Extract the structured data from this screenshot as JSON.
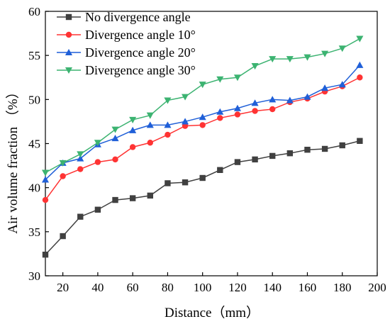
{
  "chart_data": {
    "type": "line",
    "title": "",
    "xlabel": "Distance（mm）",
    "ylabel": "Air volume fraction （%）",
    "xlim": [
      10,
      200
    ],
    "ylim": [
      30,
      60
    ],
    "xticks": [
      20,
      40,
      60,
      80,
      100,
      120,
      140,
      160,
      180,
      200
    ],
    "yticks": [
      30,
      35,
      40,
      45,
      50,
      55,
      60
    ],
    "grid": false,
    "legend_position": "top-left",
    "x": [
      10,
      20,
      30,
      40,
      50,
      60,
      70,
      80,
      90,
      100,
      110,
      120,
      130,
      140,
      150,
      160,
      170,
      180,
      190
    ],
    "series": [
      {
        "name": "No divergence angle",
        "color": "#404040",
        "marker": "square",
        "values": [
          32.4,
          34.5,
          36.7,
          37.5,
          38.6,
          38.8,
          39.1,
          40.5,
          40.6,
          41.1,
          42.0,
          42.9,
          43.2,
          43.6,
          43.9,
          44.3,
          44.4,
          44.8,
          45.3
        ]
      },
      {
        "name": "Divergence angle 10°",
        "color": "#ff3333",
        "marker": "circle",
        "values": [
          38.6,
          41.3,
          42.1,
          42.9,
          43.2,
          44.6,
          45.1,
          46.0,
          47.0,
          47.1,
          47.9,
          48.3,
          48.7,
          48.9,
          49.7,
          50.1,
          50.9,
          51.5,
          52.5
        ]
      },
      {
        "name": "Divergence angle 20°",
        "color": "#1f5fd8",
        "marker": "triangle-up",
        "values": [
          40.9,
          42.8,
          43.3,
          44.9,
          45.6,
          46.5,
          47.1,
          47.1,
          47.5,
          48.0,
          48.6,
          49.0,
          49.6,
          50.0,
          49.9,
          50.3,
          51.3,
          51.7,
          53.9
        ]
      },
      {
        "name": "Divergence angle 30°",
        "color": "#3cb371",
        "marker": "triangle-down",
        "values": [
          41.7,
          42.8,
          43.8,
          45.1,
          46.6,
          47.7,
          48.2,
          49.9,
          50.3,
          51.7,
          52.3,
          52.5,
          53.8,
          54.6,
          54.6,
          54.8,
          55.2,
          55.8,
          56.9
        ]
      }
    ]
  }
}
